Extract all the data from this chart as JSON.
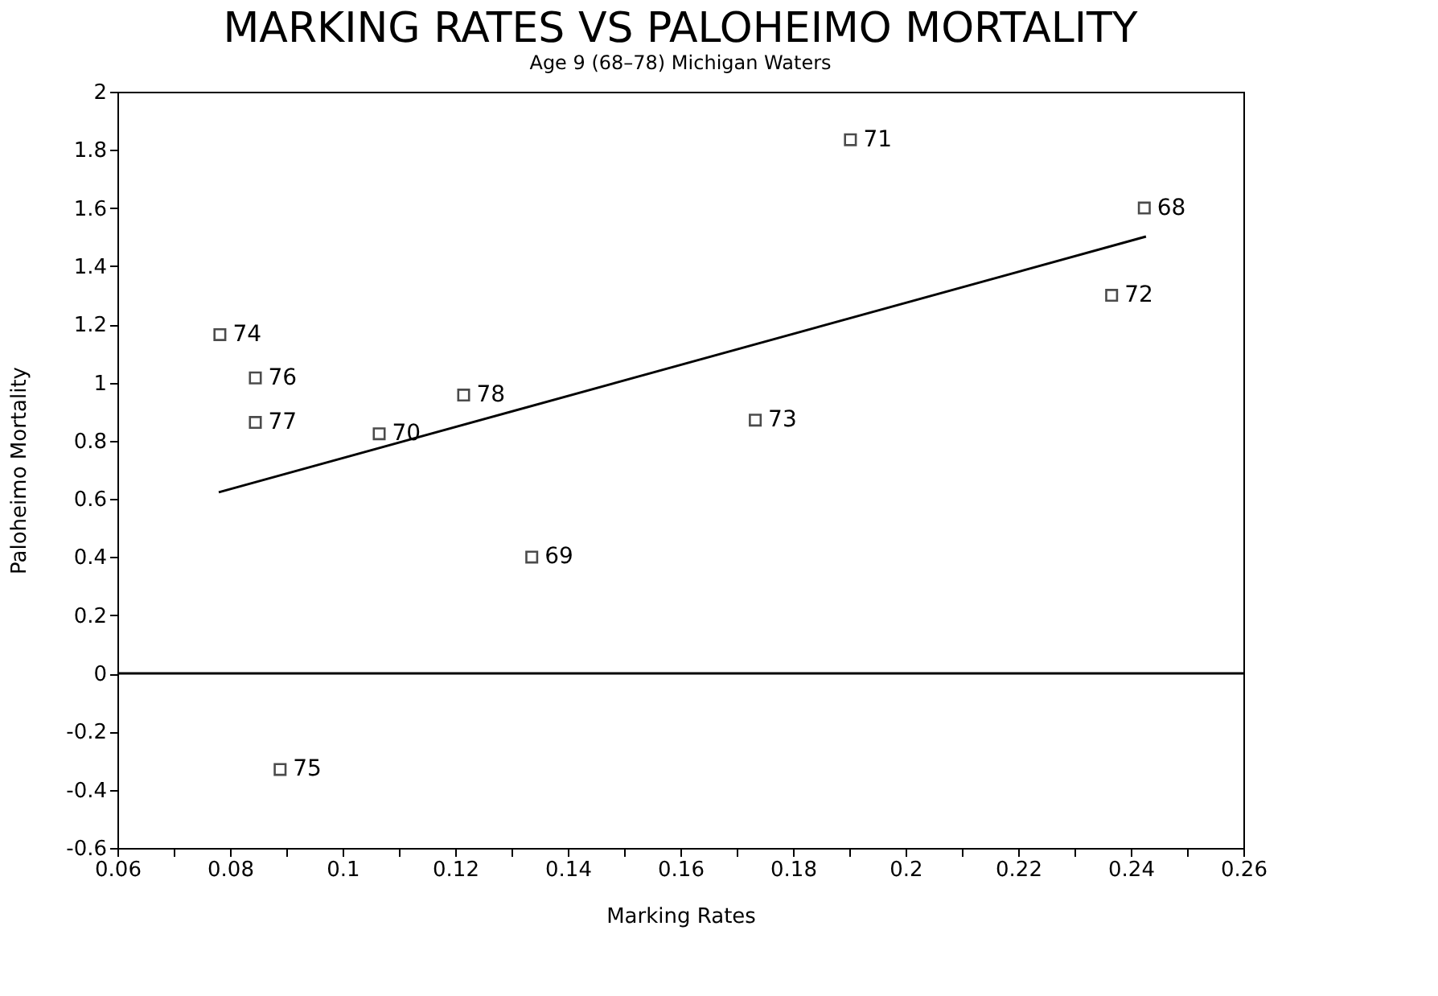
{
  "chart_data": {
    "type": "scatter",
    "title": "MARKING RATES VS PALOHEIMO MORTALITY",
    "subtitle": "Age 9 (68–78) Michigan Waters",
    "xlabel": "Marking Rates",
    "ylabel": "Paloheimo Mortality",
    "x": [
      0.0782,
      0.0845,
      0.0845,
      0.1065,
      0.1215,
      0.1336,
      0.1902,
      0.2424,
      0.2366,
      0.1733,
      0.0889
    ],
    "series": [
      {
        "color": "#000000",
        "marker": "square",
        "values": [
          1.165,
          1.016,
          0.863,
          0.824,
          0.957,
          0.4,
          1.835,
          1.6,
          1.3,
          0.871,
          -0.33
        ]
      },
      {
        "type": "line",
        "color": "#000000",
        "line_style": "solid",
        "marker": "none",
        "x": [
          0.078,
          0.2427
        ],
        "values": [
          0.623,
          1.502
        ]
      }
    ],
    "annotations": [
      {
        "text": "74",
        "x": 0.0782,
        "y": 1.165
      },
      {
        "text": "76",
        "x": 0.0845,
        "y": 1.016
      },
      {
        "text": "77",
        "x": 0.0845,
        "y": 0.863
      },
      {
        "text": "70",
        "x": 0.1065,
        "y": 0.824
      },
      {
        "text": "78",
        "x": 0.1215,
        "y": 0.957
      },
      {
        "text": "69",
        "x": 0.1336,
        "y": 0.4
      },
      {
        "text": "71",
        "x": 0.1902,
        "y": 1.835
      },
      {
        "text": "68",
        "x": 0.2424,
        "y": 1.6
      },
      {
        "text": "72",
        "x": 0.2366,
        "y": 1.3
      },
      {
        "text": "73",
        "x": 0.1733,
        "y": 0.871
      },
      {
        "text": "75",
        "x": 0.0889,
        "y": -0.33
      }
    ],
    "ref_lines": [
      {
        "axis": "y",
        "value": 0,
        "color": "#000000",
        "line_style": "solid"
      }
    ],
    "xlim": [
      0.06,
      0.26
    ],
    "xticks": [
      0.06,
      {
        "value": 0.07,
        "label": null
      },
      0.08,
      {
        "value": 0.09,
        "label": null
      },
      0.1,
      {
        "value": 0.11,
        "label": null
      },
      0.12,
      {
        "value": 0.13,
        "label": null
      },
      0.14,
      {
        "value": 0.15,
        "label": null
      },
      0.16,
      {
        "value": 0.17,
        "label": null
      },
      0.18,
      {
        "value": 0.19,
        "label": null
      },
      0.2,
      {
        "value": 0.21,
        "label": null
      },
      0.22,
      {
        "value": 0.23,
        "label": null
      },
      0.24,
      {
        "value": 0.25,
        "label": null
      },
      0.26
    ],
    "ylim": [
      -0.6,
      2
    ],
    "yticks": [
      -0.6,
      -0.4,
      -0.2,
      0,
      0.2,
      0.4,
      0.6,
      0.8,
      1,
      1.2,
      1.4,
      1.6,
      1.8,
      2
    ],
    "grid": false
  }
}
